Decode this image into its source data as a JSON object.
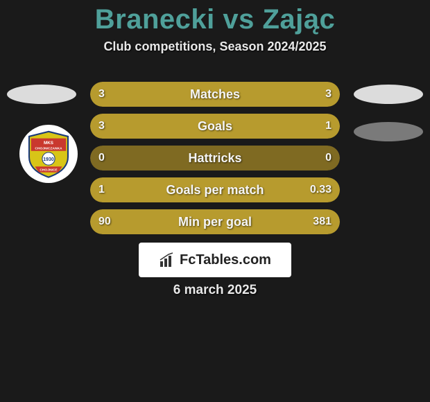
{
  "title": "Branecki vs Zając",
  "subtitle": "Club competitions, Season 2024/2025",
  "date": "6 march 2025",
  "logo_text": "FcTables.com",
  "colors": {
    "accent": "#4fa09a",
    "bar_fill": "#b79b2e",
    "bar_track": "#7f6a22",
    "bg": "#1a1a1a",
    "text": "#f5f5f5"
  },
  "badge": {
    "top_text": "MKS",
    "mid_text": "CHOJNICZANKA",
    "year": "1930",
    "bottom_text": "CHOJNICE",
    "band_color": "#c9382e",
    "field_color": "#d8c517",
    "outline": "#1a3a7a"
  },
  "rows": [
    {
      "label": "Matches",
      "left": "3",
      "right": "3",
      "left_pct": 50,
      "right_pct": 50
    },
    {
      "label": "Goals",
      "left": "3",
      "right": "1",
      "left_pct": 75,
      "right_pct": 25
    },
    {
      "label": "Hattricks",
      "left": "0",
      "right": "0",
      "left_pct": 0,
      "right_pct": 0
    },
    {
      "label": "Goals per match",
      "left": "1",
      "right": "0.33",
      "left_pct": 75,
      "right_pct": 25
    },
    {
      "label": "Min per goal",
      "left": "90",
      "right": "381",
      "left_pct": 19,
      "right_pct": 81
    }
  ]
}
